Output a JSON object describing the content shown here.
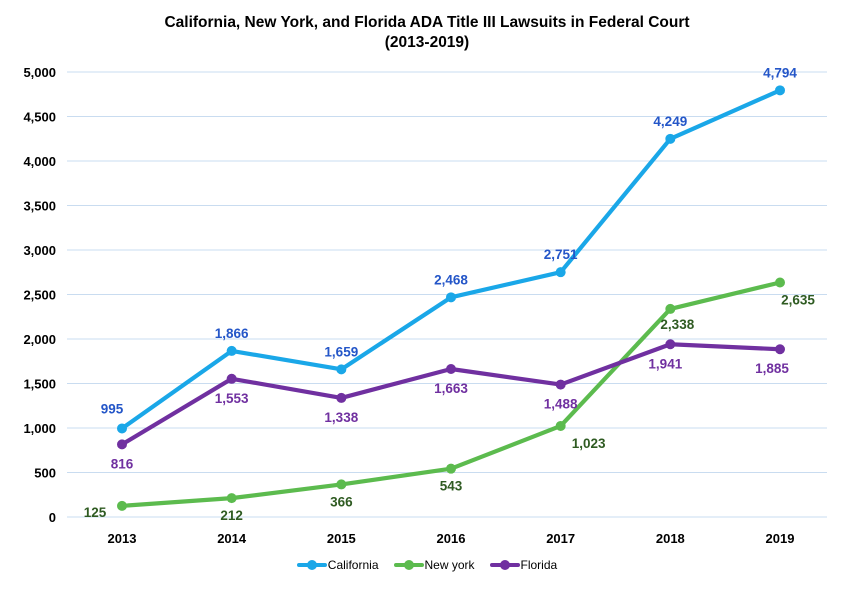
{
  "title": {
    "line1": "California, New York, and Florida ADA Title III Lawsuits in Federal Court",
    "line2": "(2013-2019)"
  },
  "chart_data": {
    "type": "line",
    "title": "California, New York, and Florida ADA Title III Lawsuits in Federal Court (2013-2019)",
    "categories": [
      "2013",
      "2014",
      "2015",
      "2016",
      "2017",
      "2018",
      "2019"
    ],
    "series": [
      {
        "name": "California",
        "color": "#1AA7E8",
        "label_color": "#2456C8",
        "values": [
          995,
          1866,
          1659,
          2468,
          2751,
          4249,
          4794
        ]
      },
      {
        "name": "New york",
        "color": "#5CBB4E",
        "label_color": "#2F5B22",
        "values": [
          125,
          212,
          366,
          543,
          1023,
          2338,
          2635
        ]
      },
      {
        "name": "Florida",
        "color": "#7030A0",
        "label_color": "#7030A0",
        "values": [
          816,
          1553,
          1338,
          1663,
          1488,
          1941,
          1885
        ]
      }
    ],
    "ylim": [
      0,
      5000
    ],
    "ystep": 500,
    "grid": true,
    "gridline_color": "#C9DCF0",
    "tick_label_color": "#000000",
    "legend_position": "bottom",
    "legend_labels": [
      "California",
      "New york",
      "Florida"
    ],
    "xlabel": "",
    "ylabel": ""
  }
}
